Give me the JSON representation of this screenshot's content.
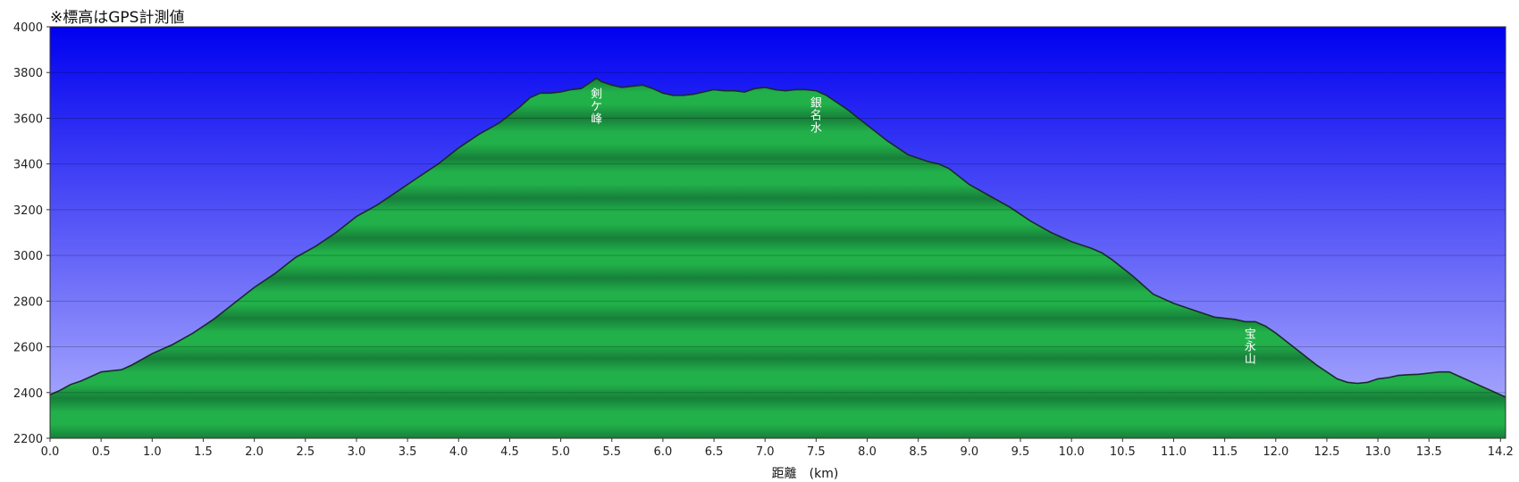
{
  "chart_data": {
    "type": "area",
    "title": "",
    "note": "※標高はGPS計測値",
    "xlabel": "距離　(km)",
    "ylabel": "",
    "xlim": [
      0,
      14.25
    ],
    "ylim": [
      2200,
      4000
    ],
    "x_ticks": [
      0,
      0.5,
      1,
      1.5,
      2,
      2.5,
      3,
      3.5,
      4,
      4.5,
      5,
      5.5,
      6,
      6.5,
      7,
      7.5,
      8,
      8.5,
      9,
      9.5,
      10,
      10.5,
      11,
      11.5,
      12,
      12.5,
      13,
      13.5,
      14.2
    ],
    "x_tick_labels": [
      "0.0",
      "0.5",
      "1.0",
      "1.5",
      "2.0",
      "2.5",
      "3.0",
      "3.5",
      "4.0",
      "4.5",
      "5.0",
      "5.5",
      "6.0",
      "6.5",
      "7.0",
      "7.5",
      "8.0",
      "8.5",
      "9.0",
      "9.5",
      "10.0",
      "10.5",
      "11.0",
      "11.5",
      "12.0",
      "12.5",
      "13.0",
      "13.5",
      "14.2"
    ],
    "y_ticks": [
      2200,
      2400,
      2600,
      2800,
      3000,
      3200,
      3400,
      3600,
      3800,
      4000
    ],
    "y_tick_labels": [
      "2200",
      "2400",
      "2600",
      "2800",
      "3000",
      "3200",
      "3400",
      "3600",
      "3800",
      "4000"
    ],
    "grid": true,
    "colors": {
      "sky_top": "#0000f0",
      "sky_bottom": "#b4b4ff",
      "terrain_light": "#22b04a",
      "terrain_dark": "#17803a",
      "outline": "#1a2a2a"
    },
    "series": [
      {
        "x": [
          0,
          0.1,
          0.2,
          0.3,
          0.4,
          0.5,
          0.6,
          0.7,
          0.8,
          1.0,
          1.2,
          1.4,
          1.6,
          1.8,
          2.0,
          2.2,
          2.4,
          2.6,
          2.8,
          3.0,
          3.2,
          3.4,
          3.6,
          3.8,
          4.0,
          4.2,
          4.4,
          4.6,
          4.7,
          4.8,
          4.9,
          5.0,
          5.1,
          5.2,
          5.3,
          5.35,
          5.4,
          5.5,
          5.6,
          5.7,
          5.8,
          5.9,
          6.0,
          6.1,
          6.2,
          6.3,
          6.4,
          6.5,
          6.6,
          6.7,
          6.8,
          6.9,
          7.0,
          7.1,
          7.2,
          7.3,
          7.4,
          7.5,
          7.6,
          7.8,
          8.0,
          8.2,
          8.4,
          8.6,
          8.7,
          8.8,
          9.0,
          9.2,
          9.4,
          9.6,
          9.8,
          10.0,
          10.2,
          10.3,
          10.4,
          10.6,
          10.8,
          11.0,
          11.2,
          11.4,
          11.6,
          11.7,
          11.8,
          11.9,
          12.0,
          12.2,
          12.4,
          12.6,
          12.7,
          12.8,
          12.9,
          13.0,
          13.1,
          13.2,
          13.3,
          13.4,
          13.5,
          13.6,
          13.7,
          13.8,
          13.9,
          14.0,
          14.1,
          14.25
        ],
        "y": [
          2390,
          2410,
          2435,
          2450,
          2470,
          2490,
          2495,
          2500,
          2520,
          2570,
          2610,
          2660,
          2720,
          2790,
          2860,
          2920,
          2990,
          3040,
          3100,
          3170,
          3220,
          3280,
          3340,
          3400,
          3470,
          3530,
          3580,
          3650,
          3690,
          3710,
          3710,
          3715,
          3725,
          3730,
          3760,
          3775,
          3760,
          3745,
          3735,
          3740,
          3745,
          3730,
          3710,
          3700,
          3700,
          3705,
          3715,
          3725,
          3720,
          3720,
          3715,
          3730,
          3735,
          3725,
          3720,
          3725,
          3725,
          3720,
          3700,
          3640,
          3570,
          3500,
          3440,
          3410,
          3400,
          3380,
          3310,
          3260,
          3210,
          3150,
          3100,
          3060,
          3030,
          3010,
          2980,
          2910,
          2830,
          2790,
          2760,
          2730,
          2720,
          2710,
          2710,
          2690,
          2660,
          2590,
          2520,
          2460,
          2445,
          2440,
          2445,
          2460,
          2465,
          2475,
          2478,
          2480,
          2485,
          2490,
          2490,
          2470,
          2450,
          2430,
          2410,
          2380
        ]
      }
    ],
    "annotations": [
      {
        "text": "剣ケ峰",
        "x": 5.35,
        "y": 3690
      },
      {
        "text": "銀名水",
        "x": 7.5,
        "y": 3650
      },
      {
        "text": "宝永山",
        "x": 11.75,
        "y": 2640
      }
    ]
  }
}
